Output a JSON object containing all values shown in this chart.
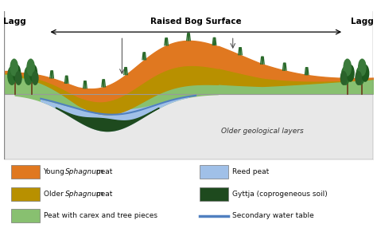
{
  "title": "Raised Bog Surface",
  "lagg_left": "Lagg",
  "lagg_right": "Lagg",
  "older_geo_label": "Older geological layers",
  "bg_color": "#e8e8e8",
  "outer_bg": "#ffffff",
  "colors": {
    "young_sphagnum": "#E07820",
    "older_sphagnum": "#B89000",
    "peat_carex": "#88C070",
    "reed_peat": "#A0C0E8",
    "gyttja": "#1E4A1E",
    "water_table": "#5080C0",
    "ground": "#d8d8d8",
    "ground_edge": "#aaaaaa"
  }
}
